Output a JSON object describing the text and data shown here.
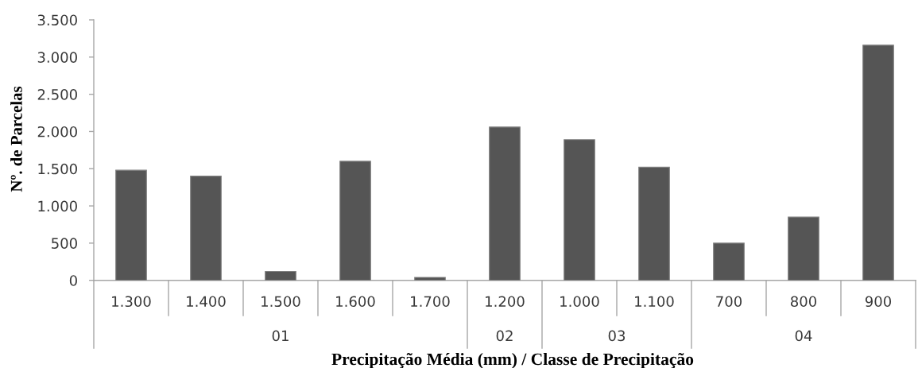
{
  "chart_data": {
    "type": "bar",
    "xlabel": "Precipitação Média (mm) / Classe de Precipitação",
    "ylabel": "Nº. de Parcelas",
    "categories": [
      "1.300",
      "1.400",
      "1.500",
      "1.600",
      "1.700",
      "1.200",
      "1.000",
      "1.100",
      "700",
      "800",
      "900"
    ],
    "values": [
      1480,
      1400,
      120,
      1600,
      40,
      2060,
      1890,
      1520,
      500,
      850,
      3160
    ],
    "color": "#555555",
    "ylim": [
      0,
      3500
    ],
    "yticks": [
      0,
      500,
      {
        "value": 1000,
        "label": "1.000"
      },
      {
        "value": 1500,
        "label": "1.500"
      },
      {
        "value": 2000,
        "label": "2.000"
      },
      {
        "value": 2500,
        "label": "2.500"
      },
      {
        "value": 3000,
        "label": "3.000"
      },
      {
        "value": 3500,
        "label": "3.500"
      }
    ],
    "annotations": [
      "01",
      "02",
      "03",
      "04"
    ]
  }
}
